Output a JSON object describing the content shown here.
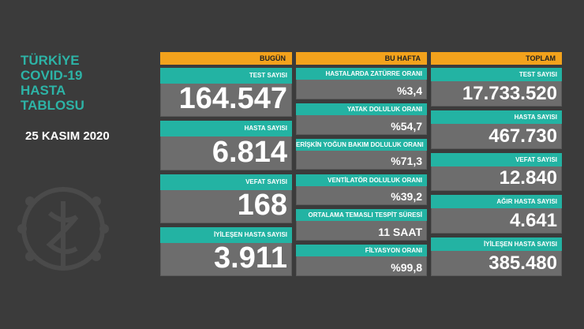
{
  "title": [
    "TÜRKİYE",
    "COVID-19",
    "HASTA",
    "TABLOSU"
  ],
  "date": "25 KASIM 2020",
  "columns": [
    {
      "header": "BUGÜN",
      "cards": [
        {
          "label": "TEST SAYISI",
          "value": "164.547"
        },
        {
          "label": "HASTA SAYISI",
          "value": "6.814"
        },
        {
          "label": "VEFAT SAYISI",
          "value": "168"
        },
        {
          "label": "İYİLEŞEN HASTA SAYISI",
          "value": "3.911"
        }
      ]
    },
    {
      "header": "BU HAFTA",
      "cards": [
        {
          "label": "HASTALARDA ZATÜRRE ORANI",
          "value": "%3,4"
        },
        {
          "label": "YATAK DOLULUK ORANI",
          "value": "%54,7"
        },
        {
          "label": "ERİŞKİN YOĞUN BAKIM DOLULUK ORANI",
          "value": "%71,3"
        },
        {
          "label": "VENTİLATÖR DOLULUK ORANI",
          "value": "%39,2"
        },
        {
          "label": "ORTALAMA TEMASLI TESPİT SÜRESİ",
          "value": "11 SAAT"
        },
        {
          "label": "FİLYASYON ORANI",
          "value": "%99,8"
        }
      ]
    },
    {
      "header": "TOPLAM",
      "cards": [
        {
          "label": "TEST SAYISI",
          "value": "17.733.520"
        },
        {
          "label": "HASTA SAYISI",
          "value": "467.730"
        },
        {
          "label": "VEFAT SAYISI",
          "value": "12.840"
        },
        {
          "label": "AĞIR HASTA SAYISI",
          "value": "4.641"
        },
        {
          "label": "İYİLEŞEN HASTA SAYISI",
          "value": "385.480"
        }
      ]
    }
  ]
}
